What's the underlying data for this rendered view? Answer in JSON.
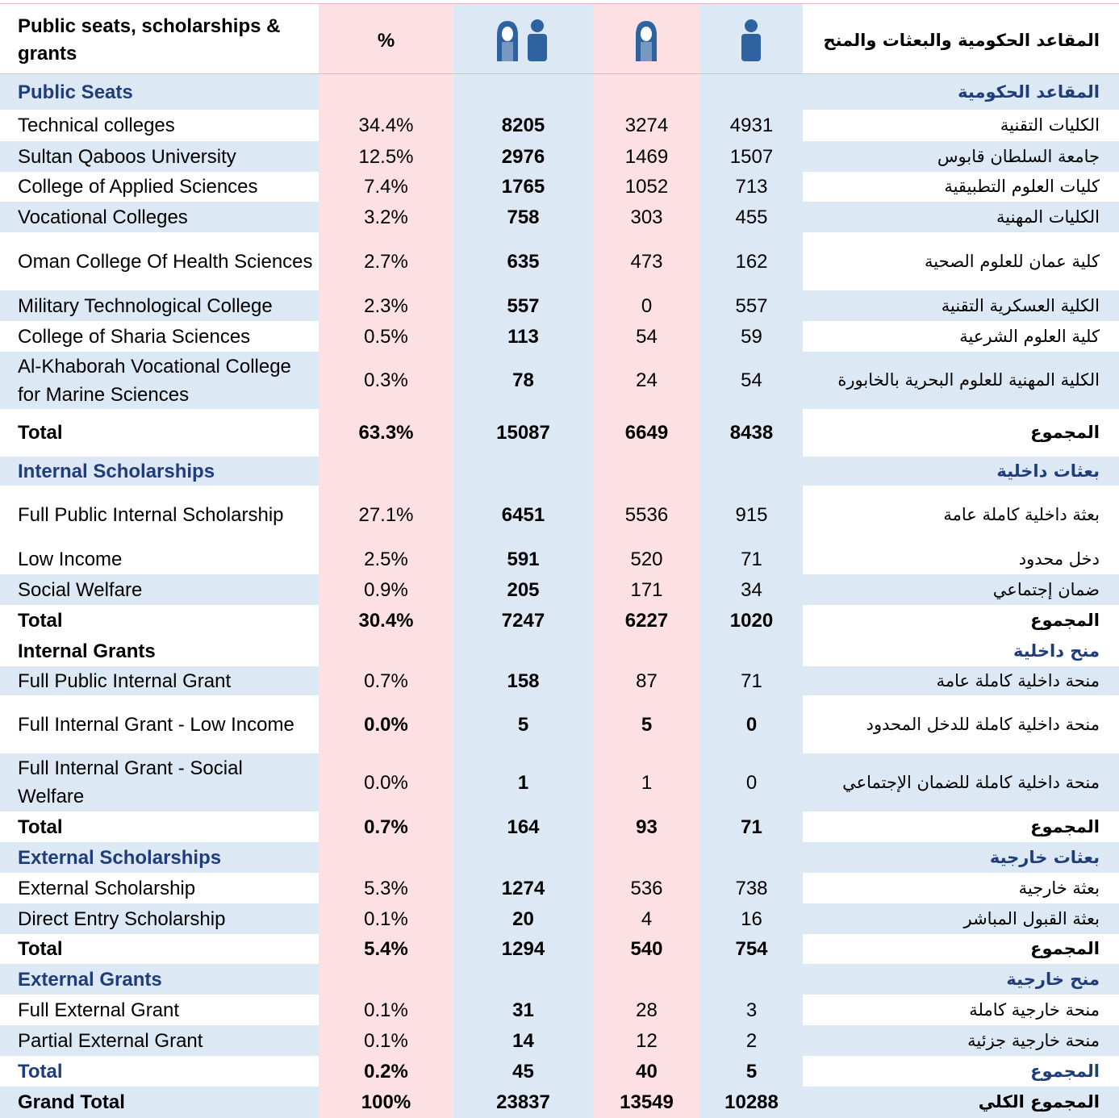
{
  "header": {
    "title_en": "Public seats, scholarships & grants",
    "percent": "%",
    "title_ar": "المقاعد الحكومية والبعثات والمنح"
  },
  "rows": [
    {
      "en": "Public Seats",
      "ar": "المقاعد الحكومية"
    },
    {
      "en": "Technical colleges",
      "pct": "34.4%",
      "total": 8205,
      "female": 3274,
      "male": 4931,
      "ar": "الكليات التقنية"
    },
    {
      "en": "Sultan Qaboos University",
      "pct": "12.5%",
      "total": 2976,
      "female": 1469,
      "male": 1507,
      "ar": "جامعة السلطان قابوس"
    },
    {
      "en": "College of Applied Sciences",
      "pct": "7.4%",
      "total": 1765,
      "female": 1052,
      "male": 713,
      "ar": "كليات العلوم التطبيقية"
    },
    {
      "en": "Vocational Colleges",
      "pct": "3.2%",
      "total": 758,
      "female": 303,
      "male": 455,
      "ar": "الكليات المهنية"
    },
    {
      "en": "Oman College Of Health Sciences",
      "pct": "2.7%",
      "total": 635,
      "female": 473,
      "male": 162,
      "ar": "كلية عمان للعلوم الصحية"
    },
    {
      "en": "Military Technological College",
      "pct": "2.3%",
      "total": 557,
      "female": 0,
      "male": 557,
      "ar": "الكلية العسكرية التقنية"
    },
    {
      "en": "College of Sharia Sciences",
      "pct": "0.5%",
      "total": 113,
      "female": 54,
      "male": 59,
      "ar": "كلية العلوم الشرعية"
    },
    {
      "en": "Al-Khaborah Vocational College for Marine Sciences",
      "pct": "0.3%",
      "total": 78,
      "female": 24,
      "male": 54,
      "ar": "الكلية المهنية للعلوم البحرية بالخابورة"
    },
    {
      "en": "Total",
      "pct": "63.3%",
      "total": 15087,
      "female": 6649,
      "male": 8438,
      "ar": "المجموع"
    },
    {
      "en": "Internal Scholarships",
      "ar": "بعثات داخلية"
    },
    {
      "en": "Full Public Internal Scholarship",
      "pct": "27.1%",
      "total": 6451,
      "female": 5536,
      "male": 915,
      "ar": "بعثة داخلية كاملة عامة"
    },
    {
      "en": "Low Income",
      "pct": "2.5%",
      "total": 591,
      "female": 520,
      "male": 71,
      "ar": "دخل محدود"
    },
    {
      "en": "Social Welfare",
      "pct": "0.9%",
      "total": 205,
      "female": 171,
      "male": 34,
      "ar": "ضمان إجتماعي"
    },
    {
      "en": "Total",
      "pct": "30.4%",
      "total": 7247,
      "female": 6227,
      "male": 1020,
      "ar": "المجموع"
    },
    {
      "en": "Internal Grants",
      "ar": "منح داخلية"
    },
    {
      "en": "Full Public Internal Grant",
      "pct": "0.7%",
      "total": 158,
      "female": 87,
      "male": 71,
      "ar": "منحة داخلية كاملة عامة"
    },
    {
      "en": "Full Internal Grant - Low Income",
      "pct": "0.0%",
      "total": 5,
      "female": 5,
      "male": 0,
      "ar": "منحة داخلية كاملة للدخل المحدود"
    },
    {
      "en": "Full Internal Grant - Social Welfare",
      "pct": "0.0%",
      "total": 1,
      "female": 1,
      "male": 0,
      "ar": "منحة داخلية كاملة للضمان الإجتماعي"
    },
    {
      "en": "Total",
      "pct": "0.7%",
      "total": 164,
      "female": 93,
      "male": 71,
      "ar": "المجموع"
    },
    {
      "en": "External Scholarships",
      "ar": "بعثات خارجية"
    },
    {
      "en": "External Scholarship",
      "pct": "5.3%",
      "total": 1274,
      "female": 536,
      "male": 738,
      "ar": "بعثة خارجية"
    },
    {
      "en": "Direct Entry Scholarship",
      "pct": "0.1%",
      "total": 20,
      "female": 4,
      "male": 16,
      "ar": "بعثة القبول المباشر"
    },
    {
      "en": "Total",
      "pct": "5.4%",
      "total": 1294,
      "female": 540,
      "male": 754,
      "ar": "المجموع"
    },
    {
      "en": "External Grants",
      "ar": "منح خارجية"
    },
    {
      "en": "Full External Grant",
      "pct": "0.1%",
      "total": 31,
      "female": 28,
      "male": 3,
      "ar": "منحة خارجية كاملة"
    },
    {
      "en": "Partial External Grant",
      "pct": "0.1%",
      "total": 14,
      "female": 12,
      "male": 2,
      "ar": "منحة خارجية جزئية"
    },
    {
      "en": "Total",
      "pct": "0.2%",
      "total": 45,
      "female": 40,
      "male": 5,
      "ar": "المجموع"
    },
    {
      "en": "Grand Total",
      "pct": "100%",
      "total": 23837,
      "female": 13549,
      "male": 10288,
      "ar": "المجموع الكلي"
    }
  ]
}
